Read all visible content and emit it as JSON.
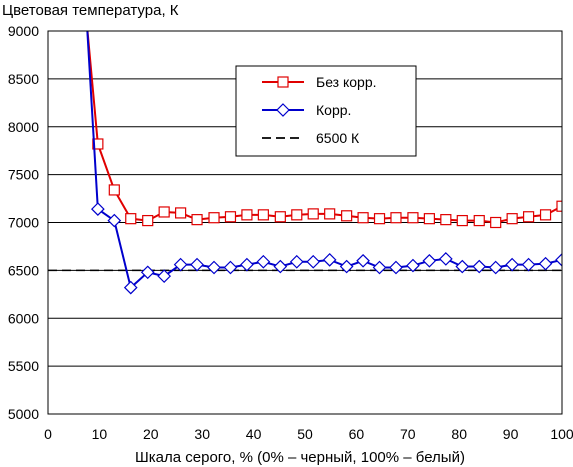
{
  "chart_data": {
    "type": "line",
    "title": "",
    "ylabel": "Цветовая температура, К",
    "xlabel": "Шкала серого, % (0% – черный, 100% – белый)",
    "xlim": [
      0,
      100
    ],
    "ylim": [
      5000,
      9000
    ],
    "xticks": [
      0,
      10,
      20,
      30,
      40,
      50,
      60,
      70,
      80,
      90,
      100
    ],
    "yticks": [
      5000,
      5500,
      6000,
      6500,
      7000,
      7500,
      8000,
      8500,
      9000
    ],
    "grid": "horizontal",
    "legend_position": "top-right",
    "series": [
      {
        "name": "Без корр.",
        "color": "#e00000",
        "marker": "square",
        "x": [
          7.6,
          9.7,
          12.9,
          16.1,
          19.4,
          22.6,
          25.8,
          29.0,
          32.3,
          35.5,
          38.7,
          41.9,
          45.2,
          48.4,
          51.6,
          54.8,
          58.1,
          61.3,
          64.5,
          67.7,
          71.0,
          74.2,
          77.4,
          80.6,
          83.9,
          87.1,
          90.3,
          93.5,
          96.8,
          100
        ],
        "y": [
          9050,
          7820,
          7340,
          7040,
          7020,
          7110,
          7100,
          7030,
          7050,
          7060,
          7080,
          7080,
          7060,
          7080,
          7090,
          7090,
          7070,
          7050,
          7040,
          7050,
          7050,
          7040,
          7030,
          7020,
          7020,
          7000,
          7040,
          7060,
          7080,
          7170
        ]
      },
      {
        "name": "Корр.",
        "color": "#0000cc",
        "marker": "diamond",
        "x": [
          7.6,
          9.7,
          12.9,
          16.1,
          19.4,
          22.6,
          25.8,
          29.0,
          32.3,
          35.5,
          38.7,
          41.9,
          45.2,
          48.4,
          51.6,
          54.8,
          58.1,
          61.3,
          64.5,
          67.7,
          71.0,
          74.2,
          77.4,
          80.6,
          83.9,
          87.1,
          90.3,
          93.5,
          96.8,
          100
        ],
        "y": [
          9050,
          7140,
          7020,
          6320,
          6480,
          6440,
          6560,
          6560,
          6530,
          6530,
          6560,
          6590,
          6540,
          6590,
          6590,
          6610,
          6540,
          6600,
          6530,
          6530,
          6550,
          6600,
          6620,
          6540,
          6540,
          6530,
          6560,
          6560,
          6570,
          6610
        ]
      },
      {
        "name": "6500 К",
        "color": "#000000",
        "marker": "none",
        "dashed": true,
        "x": [
          0,
          100
        ],
        "y": [
          6500,
          6500
        ]
      }
    ]
  }
}
